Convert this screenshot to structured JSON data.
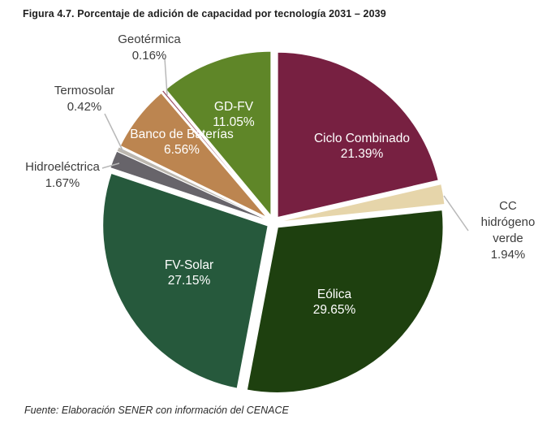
{
  "title": "Figura 4.7. Porcentaje de adición de capacidad por tecnología 2031 – 2039",
  "source": "Fuente: Elaboración SENER con información del CENACE",
  "chart_data": {
    "type": "pie",
    "title": "Figura 4.7. Porcentaje de adición de capacidad por tecnología 2031 – 2039",
    "unit": "%",
    "start_angle_deg": 0,
    "direction": "clockwise",
    "legend_position": "none",
    "slices": [
      {
        "label": "Ciclo Combinado",
        "value": 21.39,
        "pct_label": "21.39%",
        "color": "#772041",
        "label_placement": "inside"
      },
      {
        "label": "CC hidrógeno verde",
        "value": 1.94,
        "pct_label": "1.94%",
        "color": "#e6d5aa",
        "label_placement": "outside"
      },
      {
        "label": "Eólica",
        "value": 29.65,
        "pct_label": "29.65%",
        "color": "#1e400f",
        "label_placement": "inside"
      },
      {
        "label": "FV-Solar",
        "value": 27.15,
        "pct_label": "27.15%",
        "color": "#26593c",
        "label_placement": "inside"
      },
      {
        "label": "Hidroeléctrica",
        "value": 1.67,
        "pct_label": "1.67%",
        "color": "#67646a",
        "label_placement": "outside"
      },
      {
        "label": "Termosolar",
        "value": 0.42,
        "pct_label": "0.42%",
        "color": "#bcb7af",
        "label_placement": "outside"
      },
      {
        "label": "Banco de Baterías",
        "value": 6.56,
        "pct_label": "6.56%",
        "color": "#bc8550",
        "label_placement": "inside"
      },
      {
        "label": "Geotérmica",
        "value": 0.16,
        "pct_label": "0.16%",
        "color": "#9c5064",
        "label_placement": "outside"
      },
      {
        "label": "GD-FV",
        "value": 11.05,
        "pct_label": "11.05%",
        "color": "#5f8628",
        "label_placement": "inside"
      }
    ],
    "source": "Fuente: Elaboración SENER con información del CENACE"
  }
}
